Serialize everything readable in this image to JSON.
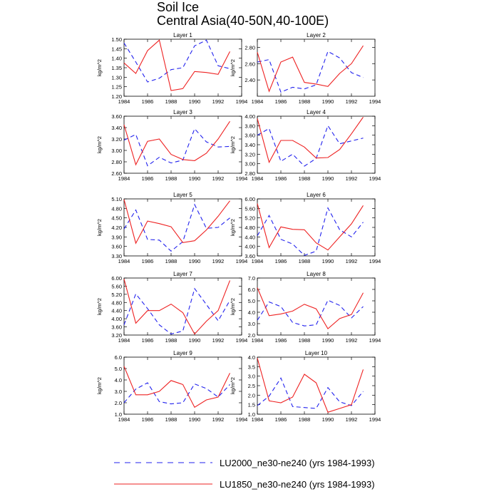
{
  "title": "Soil Ice",
  "subtitle": "Central Asia(40-50N,40-100E)",
  "legend": [
    {
      "label": "LU2000_ne30-ne240 (yrs 1984-1993)",
      "color": "#2222ee",
      "dash": "dashed"
    },
    {
      "label": "LU1850_ne30-ne240 (yrs 1984-1993)",
      "color": "#ee2222",
      "dash": "solid"
    }
  ],
  "chart_data": [
    {
      "type": "line",
      "title": "Layer 1",
      "ylabel": "kg/m^2",
      "xlim": [
        1984,
        1994
      ],
      "xticks": [
        "1984",
        "1986",
        "1988",
        "1990",
        "1992",
        "1994"
      ],
      "ylim": [
        1.2,
        1.5
      ],
      "yticks": [
        "1.20",
        "1.25",
        "1.30",
        "1.35",
        "1.40",
        "1.45",
        "1.50"
      ],
      "x": [
        1984,
        1985,
        1986,
        1987,
        1988,
        1989,
        1990,
        1991,
        1992,
        1993
      ],
      "series": [
        {
          "name": "LU2000_ne30-ne240 (yrs 1984-1993)",
          "values": [
            1.48,
            1.38,
            1.275,
            1.295,
            1.34,
            1.35,
            1.465,
            1.495,
            1.36,
            1.345
          ]
        },
        {
          "name": "LU1850_ne30-ne240 (yrs 1984-1993)",
          "values": [
            1.375,
            1.32,
            1.44,
            1.495,
            1.23,
            1.24,
            1.33,
            1.325,
            1.315,
            1.435
          ]
        }
      ]
    },
    {
      "type": "line",
      "title": "Layer 2",
      "ylabel": "kg/m^2",
      "xlim": [
        1984,
        1994
      ],
      "xticks": [
        "1984",
        "1986",
        "1988",
        "1990",
        "1992",
        "1994"
      ],
      "ylim": [
        2.2,
        2.9
      ],
      "yticks": [
        "2.40",
        "2.60",
        "2.80"
      ],
      "x": [
        1984,
        1985,
        1986,
        1987,
        1988,
        1989,
        1990,
        1991,
        1992,
        1993
      ],
      "series": [
        {
          "name": "LU2000_ne30-ne240 (yrs 1984-1993)",
          "values": [
            2.62,
            2.65,
            2.25,
            2.31,
            2.29,
            2.34,
            2.75,
            2.67,
            2.49,
            2.43
          ]
        },
        {
          "name": "LU1850_ne30-ne240 (yrs 1984-1993)",
          "values": [
            2.74,
            2.26,
            2.62,
            2.68,
            2.37,
            2.35,
            2.32,
            2.48,
            2.6,
            2.82
          ]
        }
      ]
    },
    {
      "type": "line",
      "title": "Layer 3",
      "ylabel": "kg/m^2",
      "xlim": [
        1984,
        1994
      ],
      "xticks": [
        "1984",
        "1986",
        "1988",
        "1990",
        "1992",
        "1994"
      ],
      "ylim": [
        2.6,
        3.6
      ],
      "yticks": [
        "2.60",
        "2.80",
        "3.00",
        "3.20",
        "3.40",
        "3.60"
      ],
      "x": [
        1984,
        1985,
        1986,
        1987,
        1988,
        1989,
        1990,
        1991,
        1992,
        1993
      ],
      "series": [
        {
          "name": "LU2000_ne30-ne240 (yrs 1984-1993)",
          "values": [
            3.18,
            3.28,
            2.73,
            2.88,
            2.78,
            2.83,
            3.38,
            3.15,
            3.06,
            3.07
          ]
        },
        {
          "name": "LU1850_ne30-ne240 (yrs 1984-1993)",
          "values": [
            3.45,
            2.75,
            3.16,
            3.2,
            2.93,
            2.84,
            2.82,
            2.95,
            3.2,
            3.51
          ]
        }
      ]
    },
    {
      "type": "line",
      "title": "Layer 4",
      "ylabel": "kg/m^2",
      "xlim": [
        1984,
        1994
      ],
      "xticks": [
        "1984",
        "1986",
        "1988",
        "1990",
        "1992",
        "1994"
      ],
      "ylim": [
        2.8,
        4.0
      ],
      "yticks": [
        "2.80",
        "3.00",
        "3.20",
        "3.40",
        "3.60",
        "3.80",
        "4.00"
      ],
      "x": [
        1984,
        1985,
        1986,
        1987,
        1988,
        1989,
        1990,
        1991,
        1992,
        1993
      ],
      "series": [
        {
          "name": "LU2000_ne30-ne240 (yrs 1984-1993)",
          "values": [
            3.6,
            3.74,
            3.05,
            3.2,
            2.95,
            3.11,
            3.8,
            3.42,
            3.48,
            3.54
          ]
        },
        {
          "name": "LU1850_ne30-ne240 (yrs 1984-1993)",
          "values": [
            3.95,
            3.03,
            3.49,
            3.49,
            3.35,
            3.12,
            3.13,
            3.3,
            3.63,
            3.98
          ]
        }
      ]
    },
    {
      "type": "line",
      "title": "Layer 5",
      "ylabel": "kg/m^2",
      "xlim": [
        1984,
        1994
      ],
      "xticks": [
        "1984",
        "1986",
        "1988",
        "1990",
        "1992",
        "1994"
      ],
      "ylim": [
        3.3,
        5.1
      ],
      "yticks": [
        "3.30",
        "3.60",
        "3.90",
        "4.20",
        "4.50",
        "4.80",
        "5.10"
      ],
      "x": [
        1984,
        1985,
        1986,
        1987,
        1988,
        1989,
        1990,
        1991,
        1992,
        1993
      ],
      "series": [
        {
          "name": "LU2000_ne30-ne240 (yrs 1984-1993)",
          "values": [
            4.15,
            4.75,
            3.82,
            3.8,
            3.45,
            3.75,
            4.92,
            4.17,
            4.2,
            4.5
          ]
        },
        {
          "name": "LU1850_ne30-ne240 (yrs 1984-1993)",
          "values": [
            5.08,
            3.7,
            4.4,
            4.32,
            4.22,
            3.72,
            3.78,
            4.12,
            4.55,
            5.04
          ]
        }
      ]
    },
    {
      "type": "line",
      "title": "Layer 6",
      "ylabel": "kg/m^2",
      "xlim": [
        1984,
        1994
      ],
      "xticks": [
        "1984",
        "1986",
        "1988",
        "1990",
        "1992",
        "1994"
      ],
      "ylim": [
        3.6,
        6.0
      ],
      "yticks": [
        "3.60",
        "4.00",
        "4.40",
        "4.80",
        "5.20",
        "5.60",
        "6.00"
      ],
      "x": [
        1984,
        1985,
        1986,
        1987,
        1988,
        1989,
        1990,
        1991,
        1992,
        1993
      ],
      "series": [
        {
          "name": "LU2000_ne30-ne240 (yrs 1984-1993)",
          "values": [
            4.45,
            5.3,
            4.3,
            4.1,
            3.62,
            3.8,
            5.62,
            4.7,
            4.4,
            5.02
          ]
        },
        {
          "name": "LU1850_ne30-ne240 (yrs 1984-1993)",
          "values": [
            5.8,
            3.95,
            4.82,
            4.72,
            4.7,
            4.15,
            3.85,
            4.4,
            4.95,
            5.72
          ]
        }
      ]
    },
    {
      "type": "line",
      "title": "Layer 7",
      "ylabel": "kg/m^2",
      "xlim": [
        1984,
        1994
      ],
      "xticks": [
        "1984",
        "1986",
        "1988",
        "1990",
        "1992",
        "1994"
      ],
      "ylim": [
        3.2,
        6.0
      ],
      "yticks": [
        "3.20",
        "3.60",
        "4.00",
        "4.40",
        "4.80",
        "5.20",
        "5.60",
        "6.00"
      ],
      "x": [
        1984,
        1985,
        1986,
        1987,
        1988,
        1989,
        1990,
        1991,
        1992,
        1993
      ],
      "series": [
        {
          "name": "LU2000_ne30-ne240 (yrs 1984-1993)",
          "values": [
            3.7,
            5.22,
            4.5,
            3.7,
            3.25,
            3.4,
            5.48,
            4.7,
            3.9,
            4.9
          ]
        },
        {
          "name": "LU1850_ne30-ne240 (yrs 1984-1993)",
          "values": [
            5.95,
            3.78,
            4.4,
            4.4,
            4.72,
            4.3,
            3.25,
            3.88,
            4.4,
            5.88
          ]
        }
      ]
    },
    {
      "type": "line",
      "title": "Layer 8",
      "ylabel": "kg/m^2",
      "xlim": [
        1984,
        1994
      ],
      "xticks": [
        "1984",
        "1986",
        "1988",
        "1990",
        "1992",
        "1994"
      ],
      "ylim": [
        2.0,
        7.0
      ],
      "yticks": [
        "2.0",
        "3.0",
        "4.0",
        "5.0",
        "6.0",
        "7.0"
      ],
      "x": [
        1984,
        1985,
        1986,
        1987,
        1988,
        1989,
        1990,
        1991,
        1992,
        1993
      ],
      "series": [
        {
          "name": "LU2000_ne30-ne240 (yrs 1984-1993)",
          "values": [
            3.3,
            4.9,
            4.5,
            3.1,
            2.8,
            2.9,
            5.05,
            4.6,
            3.5,
            4.5
          ]
        },
        {
          "name": "LU1850_ne30-ne240 (yrs 1984-1993)",
          "values": [
            6.15,
            3.7,
            3.85,
            4.1,
            4.7,
            4.3,
            2.55,
            3.45,
            3.8,
            5.7
          ]
        }
      ]
    },
    {
      "type": "line",
      "title": "Layer 9",
      "ylabel": "kg/m^2",
      "xlim": [
        1984,
        1994
      ],
      "xticks": [
        "1984",
        "1986",
        "1988",
        "1990",
        "1992",
        "1994"
      ],
      "ylim": [
        1.0,
        6.0
      ],
      "yticks": [
        "1.0",
        "2.0",
        "3.0",
        "4.0",
        "5.0",
        "6.0"
      ],
      "x": [
        1984,
        1985,
        1986,
        1987,
        1988,
        1989,
        1990,
        1991,
        1992,
        1993
      ],
      "series": [
        {
          "name": "LU2000_ne30-ne240 (yrs 1984-1993)",
          "values": [
            2.0,
            3.2,
            3.75,
            2.1,
            1.9,
            2.0,
            3.65,
            3.25,
            2.5,
            3.6
          ]
        },
        {
          "name": "LU1850_ne30-ne240 (yrs 1984-1993)",
          "values": [
            5.2,
            2.7,
            2.7,
            3.0,
            3.95,
            3.6,
            1.6,
            2.25,
            2.5,
            4.6
          ]
        }
      ]
    },
    {
      "type": "line",
      "title": "Layer 10",
      "ylabel": "kg/m^2",
      "xlim": [
        1984,
        1994
      ],
      "xticks": [
        "1984",
        "1986",
        "1988",
        "1990",
        "1992",
        "1994"
      ],
      "ylim": [
        1.0,
        4.0
      ],
      "yticks": [
        "1.0",
        "1.5",
        "2.0",
        "2.5",
        "3.0",
        "3.5",
        "4.0"
      ],
      "x": [
        1984,
        1985,
        1986,
        1987,
        1988,
        1989,
        1990,
        1991,
        1992,
        1993
      ],
      "series": [
        {
          "name": "LU2000_ne30-ne240 (yrs 1984-1993)",
          "values": [
            1.45,
            1.95,
            2.9,
            1.4,
            1.35,
            1.3,
            2.4,
            1.65,
            1.45,
            2.2
          ]
        },
        {
          "name": "LU1850_ne30-ne240 (yrs 1984-1993)",
          "values": [
            3.95,
            1.7,
            1.6,
            1.9,
            3.1,
            2.65,
            1.1,
            1.3,
            1.5,
            3.35
          ]
        }
      ]
    }
  ]
}
